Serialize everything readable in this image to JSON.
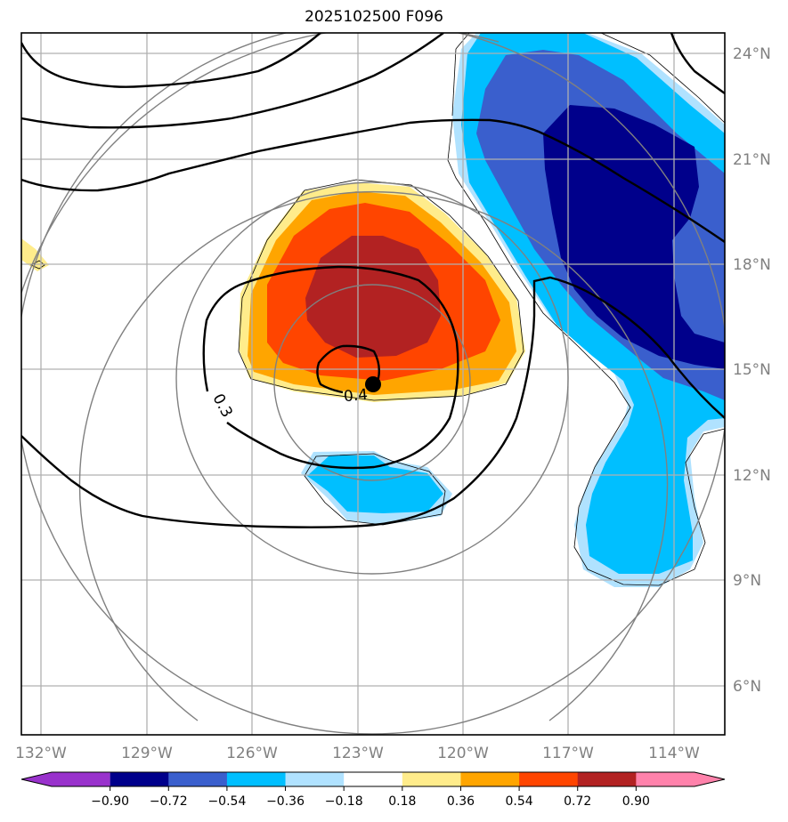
{
  "chart_data": {
    "type": "contour-map",
    "title": "2025102500 F096",
    "projection": "lat-lon map with range rings",
    "lon_ticks": [
      "132°W",
      "129°W",
      "126°W",
      "123°W",
      "120°W",
      "117°W",
      "114°W"
    ],
    "lon_values": [
      -132,
      -129,
      -126,
      -123,
      -120,
      -117,
      -114
    ],
    "lat_ticks": [
      "24°N",
      "21°N",
      "18°N",
      "15°N",
      "12°N",
      "9°N",
      "6°N"
    ],
    "lat_values": [
      24,
      21,
      18,
      15,
      12,
      9,
      6
    ],
    "xlim": [
      -132.6,
      -112.6
    ],
    "ylim": [
      4.6,
      24.6
    ],
    "grid": true,
    "center_marker": {
      "lon": -122.6,
      "lat": 14.6
    },
    "colorbar": {
      "levels": [
        -0.9,
        -0.72,
        -0.54,
        -0.36,
        -0.18,
        0.18,
        0.36,
        0.54,
        0.72,
        0.9
      ],
      "tick_labels": [
        "−0.90",
        "−0.72",
        "−0.54",
        "−0.36",
        "−0.18",
        "0.18",
        "0.36",
        "0.54",
        "0.72",
        "0.90"
      ],
      "colors": [
        "#9932CC",
        "#00008B",
        "#3A5FCD",
        "#00BFFF",
        "#B0E2FF",
        "#FFFFFF",
        "#FFEC8B",
        "#FFA500",
        "#FF4500",
        "#B22222",
        "#FF82AB"
      ],
      "extend": "both",
      "placement": "bottom"
    },
    "line_contours": [
      {
        "level": "0.3",
        "label": "0.3"
      },
      {
        "level": "0.4",
        "label": "0.4"
      }
    ],
    "range_rings": "concentric gray circles around center marker"
  }
}
